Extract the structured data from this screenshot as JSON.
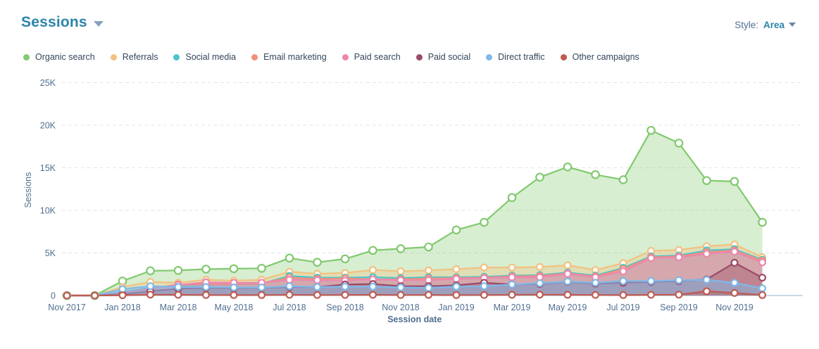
{
  "header": {
    "title": "Sessions",
    "style_label": "Style:",
    "style_value": "Area"
  },
  "chart_data": {
    "type": "area",
    "title": "Sessions",
    "xlabel": "Session date",
    "ylabel": "Sessions",
    "ylim": [
      0,
      25000
    ],
    "grid": "dashed-horizontal",
    "legend_position": "top-left",
    "y_ticks": [
      0,
      5000,
      10000,
      15000,
      20000,
      25000
    ],
    "y_tick_labels": [
      "0",
      "5K",
      "10K",
      "15K",
      "20K",
      "25K"
    ],
    "x": [
      "Nov 2017",
      "Dec 2017",
      "Jan 2018",
      "Feb 2018",
      "Mar 2018",
      "Apr 2018",
      "May 2018",
      "Jun 2018",
      "Jul 2018",
      "Aug 2018",
      "Sep 2018",
      "Oct 2018",
      "Nov 2018",
      "Dec 2018",
      "Jan 2019",
      "Feb 2019",
      "Mar 2019",
      "Apr 2019",
      "May 2019",
      "Jun 2019",
      "Jul 2019",
      "Aug 2019",
      "Sep 2019",
      "Oct 2019",
      "Nov 2019",
      "Dec 2019"
    ],
    "x_tick_labels": [
      "Nov 2017",
      "Jan 2018",
      "Mar 2018",
      "May 2018",
      "Jul 2018",
      "Sep 2018",
      "Nov 2018",
      "Jan 2019",
      "Mar 2019",
      "May 2019",
      "Jul 2019",
      "Sep 2019",
      "Nov 2019"
    ],
    "x_tick_every": 2,
    "series": [
      {
        "name": "Organic search",
        "color": "#82c96f",
        "fill_opacity": 0.32,
        "marker_r": 5.2,
        "values": [
          0,
          0,
          1700,
          2900,
          2950,
          3100,
          3150,
          3200,
          4400,
          3900,
          4300,
          5300,
          5500,
          5700,
          7700,
          8600,
          11500,
          13900,
          15100,
          14200,
          13600,
          19400,
          17900,
          13500,
          13400,
          8600
        ]
      },
      {
        "name": "Referrals",
        "color": "#f2c180",
        "fill_opacity": 0.35,
        "marker_r": 4.4,
        "values": [
          0,
          0,
          1000,
          1600,
          1500,
          1850,
          1750,
          1850,
          2800,
          2550,
          2650,
          3000,
          2850,
          2950,
          3100,
          3300,
          3300,
          3350,
          3550,
          3000,
          3800,
          5250,
          5350,
          5800,
          6000,
          4500
        ]
      },
      {
        "name": "Social media",
        "color": "#4bc4cb",
        "fill_opacity": 0.3,
        "marker_r": 4.4,
        "values": [
          0,
          0,
          400,
          900,
          1200,
          1250,
          1300,
          1400,
          2300,
          2100,
          2100,
          2150,
          2050,
          2150,
          2150,
          2200,
          2350,
          2400,
          2700,
          2350,
          3250,
          4600,
          4700,
          5300,
          5450,
          4200
        ]
      },
      {
        "name": "Email marketing",
        "color": "#f0907d",
        "fill_opacity": 0.25,
        "marker_r": 4.4,
        "values": [
          0,
          0,
          300,
          800,
          1300,
          1350,
          1350,
          1450,
          2100,
          1950,
          2000,
          1900,
          1900,
          2000,
          2050,
          2100,
          2250,
          2300,
          2600,
          2250,
          3100,
          4500,
          4600,
          5100,
          5300,
          4100
        ]
      },
      {
        "name": "Paid search",
        "color": "#eb87ae",
        "fill_opacity": 0.45,
        "marker_r": 4.4,
        "values": [
          0,
          0,
          300,
          850,
          1250,
          1550,
          1500,
          1500,
          1850,
          1800,
          1750,
          1900,
          1800,
          1800,
          1950,
          2050,
          2150,
          2150,
          2550,
          2150,
          2850,
          4400,
          4500,
          4900,
          5150,
          3900
        ]
      },
      {
        "name": "Paid social",
        "color": "#9b4b67",
        "fill_opacity": 0.38,
        "marker_r": 4.4,
        "values": [
          0,
          0,
          150,
          500,
          800,
          900,
          850,
          900,
          1000,
          1000,
          1300,
          1350,
          1100,
          1100,
          1200,
          1500,
          1300,
          1350,
          1600,
          1400,
          1500,
          1600,
          1700,
          1900,
          3850,
          2100
        ]
      },
      {
        "name": "Direct traffic",
        "color": "#7eb9ea",
        "fill_opacity": 0.5,
        "marker_r": 4.4,
        "values": [
          0,
          0,
          750,
          1100,
          1000,
          1000,
          950,
          950,
          1100,
          1000,
          1050,
          1050,
          950,
          900,
          1050,
          1100,
          1300,
          1450,
          1650,
          1500,
          1700,
          1700,
          1800,
          1850,
          1500,
          850
        ]
      },
      {
        "name": "Other campaigns",
        "color": "#c05a52",
        "fill_opacity": 0.4,
        "marker_r": 4.4,
        "values": [
          0,
          0,
          30,
          100,
          80,
          60,
          50,
          50,
          80,
          60,
          70,
          80,
          60,
          70,
          50,
          60,
          80,
          100,
          80,
          70,
          50,
          80,
          100,
          500,
          300,
          50
        ]
      }
    ],
    "style_colors": {
      "axis_baseline": "#a9c4dc",
      "gridline": "#dfe6ed",
      "tick_text": "#516f90"
    }
  }
}
